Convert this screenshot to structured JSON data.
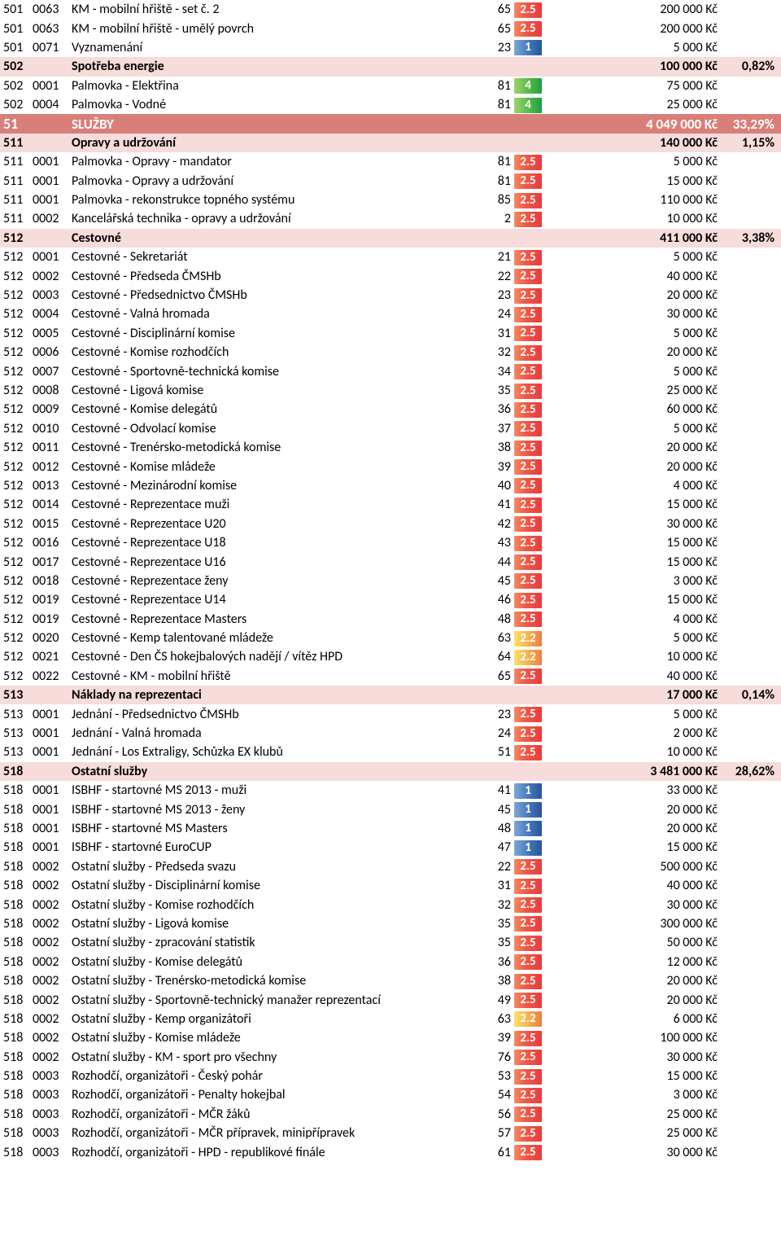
{
  "tag_gradients": {
    "red": "linear-gradient(90deg,#f58b62 0%,#ef5a4a 40%,#e93b3b 100%)",
    "orange": "linear-gradient(90deg,#fbe26b 0%,#f7b24e 50%,#ef7d45 100%)",
    "green": "linear-gradient(90deg,#9ed36a 0%,#4cb748 60%,#1e9e44 100%)",
    "blue": "linear-gradient(90deg,#7ba7d7 0%,#3f72b8 60%,#2a5599 100%)"
  },
  "rows": [
    {
      "type": "item",
      "c1": "501",
      "c2": "0063",
      "name": "KM - mobilní hřiště - set č. 2",
      "c4": "65",
      "tag": "2.5",
      "tagc": "red",
      "amount": "200 000 Kč"
    },
    {
      "type": "item",
      "c1": "501",
      "c2": "0063",
      "name": "KM - mobilní hřiště - umělý povrch",
      "c4": "65",
      "tag": "2.5",
      "tagc": "red",
      "amount": "200 000 Kč"
    },
    {
      "type": "item",
      "c1": "501",
      "c2": "0071",
      "name": "Vyznamenání",
      "c4": "23",
      "tag": "1",
      "tagc": "blue",
      "amount": "5 000 Kč"
    },
    {
      "type": "hdr2",
      "c1": "502",
      "name": "Spotřeba energie",
      "amount": "100 000 Kč",
      "pct": "0,82%"
    },
    {
      "type": "item",
      "c1": "502",
      "c2": "0001",
      "name": "Palmovka - Elektřina",
      "c4": "81",
      "tag": "4",
      "tagc": "green",
      "amount": "75 000 Kč"
    },
    {
      "type": "item",
      "c1": "502",
      "c2": "0004",
      "name": "Palmovka - Vodné",
      "c4": "81",
      "tag": "4",
      "tagc": "green",
      "amount": "25 000 Kč"
    },
    {
      "type": "hdr1",
      "c1": "51",
      "name": "SLUŽBY",
      "amount": "4 049 000 Kč",
      "pct": "33,29%"
    },
    {
      "type": "hdr2",
      "c1": "511",
      "name": "Opravy a udržování",
      "amount": "140 000 Kč",
      "pct": "1,15%"
    },
    {
      "type": "item",
      "c1": "511",
      "c2": "0001",
      "name": "Palmovka - Opravy - mandator",
      "c4": "81",
      "tag": "2.5",
      "tagc": "red",
      "amount": "5 000 Kč"
    },
    {
      "type": "item",
      "c1": "511",
      "c2": "0001",
      "name": "Palmovka - Opravy a udržování",
      "c4": "81",
      "tag": "2.5",
      "tagc": "red",
      "amount": "15 000 Kč"
    },
    {
      "type": "item",
      "c1": "511",
      "c2": "0001",
      "name": "Palmovka - rekonstrukce topného systému",
      "c4": "85",
      "tag": "2.5",
      "tagc": "red",
      "amount": "110 000 Kč"
    },
    {
      "type": "item",
      "c1": "511",
      "c2": "0002",
      "name": "Kancelářská technika - opravy a udržování",
      "c4": "2",
      "tag": "2.5",
      "tagc": "red",
      "amount": "10 000 Kč"
    },
    {
      "type": "hdr2",
      "c1": "512",
      "name": "Cestovné",
      "amount": "411 000 Kč",
      "pct": "3,38%"
    },
    {
      "type": "item",
      "c1": "512",
      "c2": "0001",
      "name": "Cestovné - Sekretariát",
      "c4": "21",
      "tag": "2.5",
      "tagc": "red",
      "amount": "5 000 Kč"
    },
    {
      "type": "item",
      "c1": "512",
      "c2": "0002",
      "name": "Cestovné - Předseda ČMSHb",
      "c4": "22",
      "tag": "2.5",
      "tagc": "red",
      "amount": "40 000 Kč"
    },
    {
      "type": "item",
      "c1": "512",
      "c2": "0003",
      "name": "Cestovné - Předsednictvo ČMSHb",
      "c4": "23",
      "tag": "2.5",
      "tagc": "red",
      "amount": "20 000 Kč"
    },
    {
      "type": "item",
      "c1": "512",
      "c2": "0004",
      "name": "Cestovné - Valná hromada",
      "c4": "24",
      "tag": "2.5",
      "tagc": "red",
      "amount": "30 000 Kč"
    },
    {
      "type": "item",
      "c1": "512",
      "c2": "0005",
      "name": "Cestovné - Disciplinární komise",
      "c4": "31",
      "tag": "2.5",
      "tagc": "red",
      "amount": "5 000 Kč"
    },
    {
      "type": "item",
      "c1": "512",
      "c2": "0006",
      "name": "Cestovné - Komise rozhodčích",
      "c4": "32",
      "tag": "2.5",
      "tagc": "red",
      "amount": "20 000 Kč"
    },
    {
      "type": "item",
      "c1": "512",
      "c2": "0007",
      "name": "Cestovné - Sportovně-technická komise",
      "c4": "34",
      "tag": "2.5",
      "tagc": "red",
      "amount": "5 000 Kč"
    },
    {
      "type": "item",
      "c1": "512",
      "c2": "0008",
      "name": "Cestovné - Ligová komise",
      "c4": "35",
      "tag": "2.5",
      "tagc": "red",
      "amount": "25 000 Kč"
    },
    {
      "type": "item",
      "c1": "512",
      "c2": "0009",
      "name": "Cestovné - Komise delegátů",
      "c4": "36",
      "tag": "2.5",
      "tagc": "red",
      "amount": "60 000 Kč"
    },
    {
      "type": "item",
      "c1": "512",
      "c2": "0010",
      "name": "Cestovné - Odvolací komise",
      "c4": "37",
      "tag": "2.5",
      "tagc": "red",
      "amount": "5 000 Kč"
    },
    {
      "type": "item",
      "c1": "512",
      "c2": "0011",
      "name": "Cestovné - Trenérsko-metodická komise",
      "c4": "38",
      "tag": "2.5",
      "tagc": "red",
      "amount": "20 000 Kč"
    },
    {
      "type": "item",
      "c1": "512",
      "c2": "0012",
      "name": "Cestovné - Komise mládeže",
      "c4": "39",
      "tag": "2.5",
      "tagc": "red",
      "amount": "20 000 Kč"
    },
    {
      "type": "item",
      "c1": "512",
      "c2": "0013",
      "name": "Cestovné - Mezinárodní komise",
      "c4": "40",
      "tag": "2.5",
      "tagc": "red",
      "amount": "4 000 Kč"
    },
    {
      "type": "item",
      "c1": "512",
      "c2": "0014",
      "name": "Cestovné - Reprezentace muži",
      "c4": "41",
      "tag": "2.5",
      "tagc": "red",
      "amount": "15 000 Kč"
    },
    {
      "type": "item",
      "c1": "512",
      "c2": "0015",
      "name": "Cestovné - Reprezentace U20",
      "c4": "42",
      "tag": "2.5",
      "tagc": "red",
      "amount": "30 000 Kč"
    },
    {
      "type": "item",
      "c1": "512",
      "c2": "0016",
      "name": "Cestovné - Reprezentace U18",
      "c4": "43",
      "tag": "2.5",
      "tagc": "red",
      "amount": "15 000 Kč"
    },
    {
      "type": "item",
      "c1": "512",
      "c2": "0017",
      "name": "Cestovné - Reprezentace U16",
      "c4": "44",
      "tag": "2.5",
      "tagc": "red",
      "amount": "15 000 Kč"
    },
    {
      "type": "item",
      "c1": "512",
      "c2": "0018",
      "name": "Cestovné - Reprezentace ženy",
      "c4": "45",
      "tag": "2.5",
      "tagc": "red",
      "amount": "3 000 Kč"
    },
    {
      "type": "item",
      "c1": "512",
      "c2": "0019",
      "name": "Cestovné - Reprezentace U14",
      "c4": "46",
      "tag": "2.5",
      "tagc": "red",
      "amount": "15 000 Kč"
    },
    {
      "type": "item",
      "c1": "512",
      "c2": "0019",
      "name": "Cestovné - Reprezentace Masters",
      "c4": "48",
      "tag": "2.5",
      "tagc": "red",
      "amount": "4 000 Kč"
    },
    {
      "type": "item",
      "c1": "512",
      "c2": "0020",
      "name": "Cestovné - Kemp talentované mládeže",
      "c4": "63",
      "tag": "2.2",
      "tagc": "orange",
      "amount": "5 000 Kč"
    },
    {
      "type": "item",
      "c1": "512",
      "c2": "0021",
      "name": "Cestovné - Den ČS hokejbalových nadějí / vítěz HPD",
      "c4": "64",
      "tag": "2.2",
      "tagc": "orange",
      "amount": "10 000 Kč"
    },
    {
      "type": "item",
      "c1": "512",
      "c2": "0022",
      "name": "Cestovné - KM - mobilní hřiště",
      "c4": "65",
      "tag": "2.5",
      "tagc": "red",
      "amount": "40 000 Kč"
    },
    {
      "type": "hdr2",
      "c1": "513",
      "name": "Náklady na reprezentaci",
      "amount": "17 000 Kč",
      "pct": "0,14%"
    },
    {
      "type": "item",
      "c1": "513",
      "c2": "0001",
      "name": "Jednání - Předsednictvo ČMSHb",
      "c4": "23",
      "tag": "2.5",
      "tagc": "red",
      "amount": "5 000 Kč"
    },
    {
      "type": "item",
      "c1": "513",
      "c2": "0001",
      "name": "Jednání - Valná hromada",
      "c4": "24",
      "tag": "2.5",
      "tagc": "red",
      "amount": "2 000 Kč"
    },
    {
      "type": "item",
      "c1": "513",
      "c2": "0001",
      "name": "Jednání - Los Extraligy, Schůzka EX klubů",
      "c4": "51",
      "tag": "2.5",
      "tagc": "red",
      "amount": "10 000 Kč"
    },
    {
      "type": "hdr2",
      "c1": "518",
      "name": "Ostatní služby",
      "amount": "3 481 000 Kč",
      "pct": "28,62%"
    },
    {
      "type": "item",
      "c1": "518",
      "c2": "0001",
      "name": "ISBHF - startovné MS 2013 - muži",
      "c4": "41",
      "tag": "1",
      "tagc": "blue",
      "amount": "33 000 Kč"
    },
    {
      "type": "item",
      "c1": "518",
      "c2": "0001",
      "name": "ISBHF - startovné MS 2013 - ženy",
      "c4": "45",
      "tag": "1",
      "tagc": "blue",
      "amount": "20 000 Kč"
    },
    {
      "type": "item",
      "c1": "518",
      "c2": "0001",
      "name": "ISBHF - startovné MS Masters",
      "c4": "48",
      "tag": "1",
      "tagc": "blue",
      "amount": "20 000 Kč"
    },
    {
      "type": "item",
      "c1": "518",
      "c2": "0001",
      "name": "ISBHF - startovné EuroCUP",
      "c4": "47",
      "tag": "1",
      "tagc": "blue",
      "amount": "15 000 Kč"
    },
    {
      "type": "item",
      "c1": "518",
      "c2": "0002",
      "name": "Ostatní služby - Předseda svazu",
      "c4": "22",
      "tag": "2.5",
      "tagc": "red",
      "amount": "500 000 Kč"
    },
    {
      "type": "item",
      "c1": "518",
      "c2": "0002",
      "name": "Ostatní služby - Disciplinární komise",
      "c4": "31",
      "tag": "2.5",
      "tagc": "red",
      "amount": "40 000 Kč"
    },
    {
      "type": "item",
      "c1": "518",
      "c2": "0002",
      "name": "Ostatní služby - Komise rozhodčích",
      "c4": "32",
      "tag": "2.5",
      "tagc": "red",
      "amount": "30 000 Kč"
    },
    {
      "type": "item",
      "c1": "518",
      "c2": "0002",
      "name": "Ostatní služby - Ligová komise",
      "c4": "35",
      "tag": "2.5",
      "tagc": "red",
      "amount": "300 000 Kč"
    },
    {
      "type": "item",
      "c1": "518",
      "c2": "0002",
      "name": "Ostatní služby - zpracování statistik",
      "c4": "35",
      "tag": "2.5",
      "tagc": "red",
      "amount": "50 000 Kč"
    },
    {
      "type": "item",
      "c1": "518",
      "c2": "0002",
      "name": "Ostatní služby - Komise delegátů",
      "c4": "36",
      "tag": "2.5",
      "tagc": "red",
      "amount": "12 000 Kč"
    },
    {
      "type": "item",
      "c1": "518",
      "c2": "0002",
      "name": "Ostatní služby - Trenérsko-metodická komise",
      "c4": "38",
      "tag": "2.5",
      "tagc": "red",
      "amount": "20 000 Kč"
    },
    {
      "type": "item",
      "c1": "518",
      "c2": "0002",
      "name": "Ostatní služby - Sportovně-technický manažer reprezentací",
      "c4": "49",
      "tag": "2.5",
      "tagc": "red",
      "amount": "20 000 Kč"
    },
    {
      "type": "item",
      "c1": "518",
      "c2": "0002",
      "name": "Ostatní služby - Kemp organizátoři",
      "c4": "63",
      "tag": "2.2",
      "tagc": "orange",
      "amount": "6 000 Kč"
    },
    {
      "type": "item",
      "c1": "518",
      "c2": "0002",
      "name": "Ostatní služby - Komise mládeže",
      "c4": "39",
      "tag": "2.5",
      "tagc": "red",
      "amount": "100 000 Kč"
    },
    {
      "type": "item",
      "c1": "518",
      "c2": "0002",
      "name": "Ostatní služby - KM - sport pro všechny",
      "c4": "76",
      "tag": "2.5",
      "tagc": "red",
      "amount": "30 000 Kč"
    },
    {
      "type": "item",
      "c1": "518",
      "c2": "0003",
      "name": "Rozhodčí, organizátoři - Český pohár",
      "c4": "53",
      "tag": "2.5",
      "tagc": "red",
      "amount": "15 000 Kč"
    },
    {
      "type": "item",
      "c1": "518",
      "c2": "0003",
      "name": "Rozhodčí, organizátoři - Penalty hokejbal",
      "c4": "54",
      "tag": "2.5",
      "tagc": "red",
      "amount": "3 000 Kč"
    },
    {
      "type": "item",
      "c1": "518",
      "c2": "0003",
      "name": "Rozhodčí, organizátoři - MČR žáků",
      "c4": "56",
      "tag": "2.5",
      "tagc": "red",
      "amount": "25 000 Kč"
    },
    {
      "type": "item",
      "c1": "518",
      "c2": "0003",
      "name": "Rozhodčí, organizátoři - MČR přípravek, minipřípravek",
      "c4": "57",
      "tag": "2.5",
      "tagc": "red",
      "amount": "25 000 Kč"
    },
    {
      "type": "item",
      "c1": "518",
      "c2": "0003",
      "name": "Rozhodčí, organizátoři - HPD - republikové finále",
      "c4": "61",
      "tag": "2.5",
      "tagc": "red",
      "amount": "30 000 Kč"
    }
  ]
}
